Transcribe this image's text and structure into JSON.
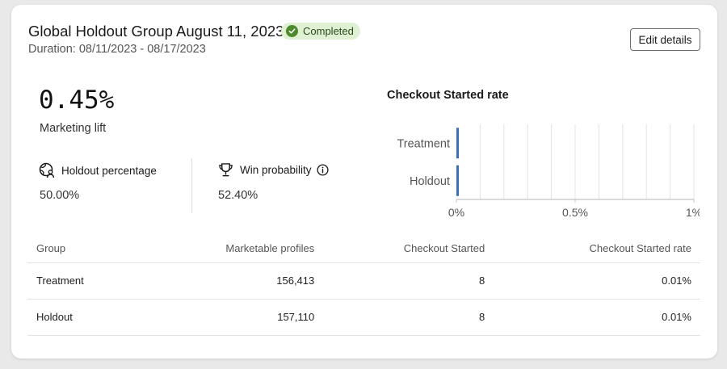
{
  "header": {
    "title": "Global Holdout Group August 11, 2023",
    "status": "Completed",
    "duration": "Duration: 08/11/2023 - 08/17/2023",
    "edit_label": "Edit details"
  },
  "summary": {
    "lift_value": "0.45%",
    "lift_label": "Marketing lift",
    "holdout_label": "Holdout percentage",
    "holdout_value": "50.00%",
    "win_label": "Win probability",
    "win_value": "52.40%"
  },
  "chart": {
    "title": "Checkout Started rate"
  },
  "chart_data": {
    "type": "bar",
    "orientation": "horizontal",
    "categories": [
      "Treatment",
      "Holdout"
    ],
    "values": [
      0.01,
      0.01
    ],
    "unit": "%",
    "xlim": [
      0,
      1
    ],
    "x_ticks": [
      "0%",
      "0.5%",
      "1%"
    ],
    "color": "#3b6fb6",
    "grid": true
  },
  "table": {
    "columns": [
      "Group",
      "Marketable profiles",
      "Checkout Started",
      "Checkout Started rate"
    ],
    "rows": [
      [
        "Treatment",
        "156,413",
        "8",
        "0.01%"
      ],
      [
        "Holdout",
        "157,110",
        "8",
        "0.01%"
      ]
    ]
  }
}
